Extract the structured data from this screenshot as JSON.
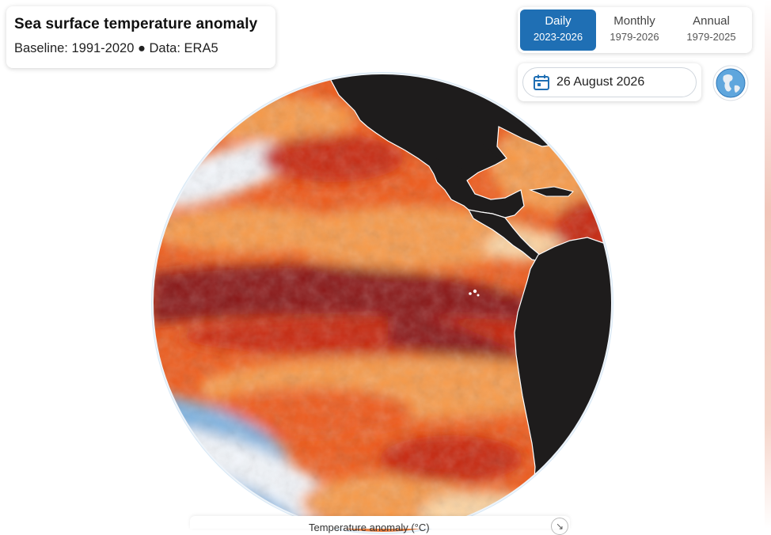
{
  "header": {
    "title": "Sea surface temperature anomaly",
    "subtitle": "Baseline: 1991-2020 ● Data: ERA5"
  },
  "timescale": {
    "options": [
      {
        "label": "Daily",
        "range": "2023-2026",
        "active": true
      },
      {
        "label": "Monthly",
        "range": "1979-2026",
        "active": false
      },
      {
        "label": "Annual",
        "range": "1979-2025",
        "active": false
      }
    ]
  },
  "date_picker": {
    "value": "26 August 2026",
    "icon": "calendar-icon"
  },
  "projection_toggle": {
    "icon": "globe-icon"
  },
  "map": {
    "region": "Eastern Pacific / Americas",
    "colors": {
      "land": "#1e1c1c",
      "anomaly_extreme": "#8a1212",
      "anomaly_high": "#c8280f",
      "anomaly_mid": "#ee5a1a",
      "anomaly_low": "#f79a4a",
      "anomaly_slight": "#fcd3a0",
      "anomaly_neutral": "#f3f6fb",
      "anomaly_cold": "#7fb3e0"
    }
  },
  "legend": {
    "label": "Temperature anomaly (°C)",
    "collapse_icon": "arrow-diagonal-icon"
  }
}
